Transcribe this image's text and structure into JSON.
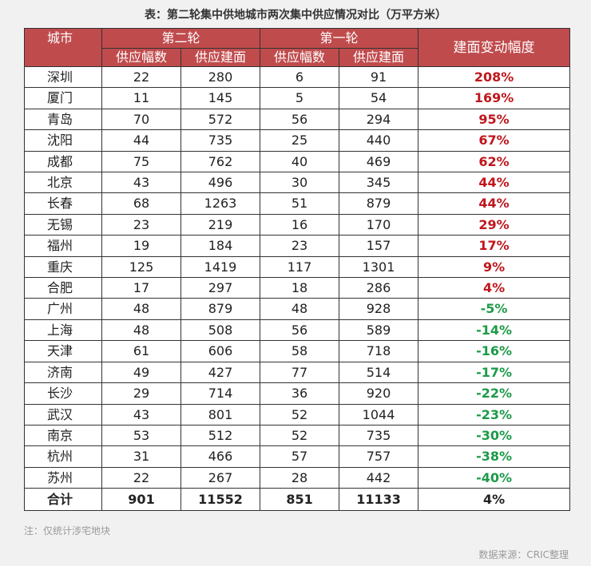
{
  "title": "表：第二轮集中供地城市两次集中供应情况对比（万平方米）",
  "headers": {
    "city": "城市",
    "round2": "第二轮",
    "round1": "第一轮",
    "change": "建面变动幅度",
    "count": "供应幅数",
    "area": "供应建面"
  },
  "rows": [
    {
      "city": "深圳",
      "r2_count": "22",
      "r2_area": "280",
      "r1_count": "6",
      "r1_area": "91",
      "change": "208%"
    },
    {
      "city": "厦门",
      "r2_count": "11",
      "r2_area": "145",
      "r1_count": "5",
      "r1_area": "54",
      "change": "169%"
    },
    {
      "city": "青岛",
      "r2_count": "70",
      "r2_area": "572",
      "r1_count": "56",
      "r1_area": "294",
      "change": "95%"
    },
    {
      "city": "沈阳",
      "r2_count": "44",
      "r2_area": "735",
      "r1_count": "25",
      "r1_area": "440",
      "change": "67%"
    },
    {
      "city": "成都",
      "r2_count": "75",
      "r2_area": "762",
      "r1_count": "40",
      "r1_area": "469",
      "change": "62%"
    },
    {
      "city": "北京",
      "r2_count": "43",
      "r2_area": "496",
      "r1_count": "30",
      "r1_area": "345",
      "change": "44%"
    },
    {
      "city": "长春",
      "r2_count": "68",
      "r2_area": "1263",
      "r1_count": "51",
      "r1_area": "879",
      "change": "44%"
    },
    {
      "city": "无锡",
      "r2_count": "23",
      "r2_area": "219",
      "r1_count": "16",
      "r1_area": "170",
      "change": "29%"
    },
    {
      "city": "福州",
      "r2_count": "19",
      "r2_area": "184",
      "r1_count": "23",
      "r1_area": "157",
      "change": "17%"
    },
    {
      "city": "重庆",
      "r2_count": "125",
      "r2_area": "1419",
      "r1_count": "117",
      "r1_area": "1301",
      "change": "9%"
    },
    {
      "city": "合肥",
      "r2_count": "17",
      "r2_area": "297",
      "r1_count": "18",
      "r1_area": "286",
      "change": "4%"
    },
    {
      "city": "广州",
      "r2_count": "48",
      "r2_area": "879",
      "r1_count": "48",
      "r1_area": "928",
      "change": "-5%"
    },
    {
      "city": "上海",
      "r2_count": "48",
      "r2_area": "508",
      "r1_count": "56",
      "r1_area": "589",
      "change": "-14%"
    },
    {
      "city": "天津",
      "r2_count": "61",
      "r2_area": "606",
      "r1_count": "58",
      "r1_area": "718",
      "change": "-16%"
    },
    {
      "city": "济南",
      "r2_count": "49",
      "r2_area": "427",
      "r1_count": "77",
      "r1_area": "514",
      "change": "-17%"
    },
    {
      "city": "长沙",
      "r2_count": "29",
      "r2_area": "714",
      "r1_count": "36",
      "r1_area": "920",
      "change": "-22%"
    },
    {
      "city": "武汉",
      "r2_count": "43",
      "r2_area": "801",
      "r1_count": "52",
      "r1_area": "1044",
      "change": "-23%"
    },
    {
      "city": "南京",
      "r2_count": "53",
      "r2_area": "512",
      "r1_count": "52",
      "r1_area": "735",
      "change": "-30%"
    },
    {
      "city": "杭州",
      "r2_count": "31",
      "r2_area": "466",
      "r1_count": "57",
      "r1_area": "757",
      "change": "-38%"
    },
    {
      "city": "苏州",
      "r2_count": "22",
      "r2_area": "267",
      "r1_count": "28",
      "r1_area": "442",
      "change": "-40%"
    }
  ],
  "total": {
    "city": "合计",
    "r2_count": "901",
    "r2_area": "11552",
    "r1_count": "851",
    "r1_area": "11133",
    "change": "4%"
  },
  "note": "注：仅统计涉宅地块",
  "source": "数据来源：CRIC整理",
  "colors": {
    "header_bg": "#c04b4d",
    "positive": "#c0161c",
    "negative": "#1d9a48",
    "background": "#f1f1f1"
  }
}
